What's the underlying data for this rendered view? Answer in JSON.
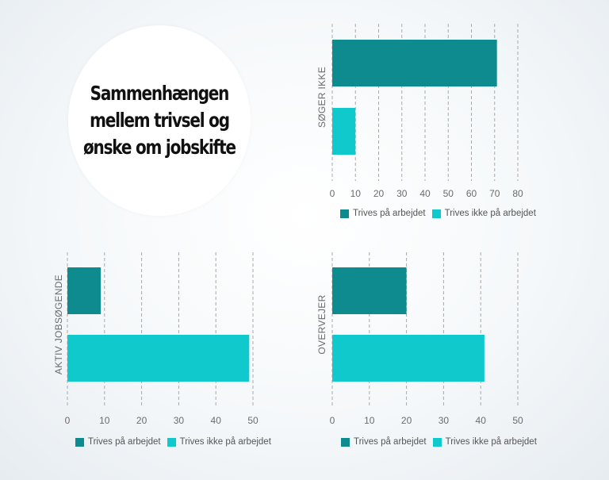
{
  "title_lines": [
    "Sammenhængen",
    "mellem trivsel og",
    "ønske om jobskifte"
  ],
  "colors": {
    "dark": "#0e8b8f",
    "light": "#10c9cd",
    "grid": "#a8a8a8"
  },
  "chart_data": [
    {
      "type": "bar",
      "orientation": "horizontal",
      "category_label": "SØGER IKKE",
      "xlim": [
        0,
        80
      ],
      "ticks": [
        0,
        10,
        20,
        30,
        40,
        50,
        60,
        70,
        80
      ],
      "series": [
        {
          "name": "Trives på arbejdet",
          "value": 71
        },
        {
          "name": "Trives ikke på arbejdet",
          "value": 10
        }
      ],
      "legend": [
        "Trives på arbejdet",
        "Trives ikke på arbejdet"
      ],
      "grid": true,
      "legend_position": "bottom"
    },
    {
      "type": "bar",
      "orientation": "horizontal",
      "category_label": "AKTIV JOBSØGENDE",
      "xlim": [
        0,
        50
      ],
      "ticks": [
        0,
        10,
        20,
        30,
        40,
        50
      ],
      "series": [
        {
          "name": "Trives på arbejdet",
          "value": 9
        },
        {
          "name": "Trives ikke på arbejdet",
          "value": 49
        }
      ],
      "legend": [
        "Trives på arbejdet",
        "Trives ikke på arbejdet"
      ],
      "grid": true,
      "legend_position": "bottom"
    },
    {
      "type": "bar",
      "orientation": "horizontal",
      "category_label": "OVERVEJER",
      "xlim": [
        0,
        50
      ],
      "ticks": [
        0,
        10,
        20,
        30,
        40,
        50
      ],
      "series": [
        {
          "name": "Trives på arbejdet",
          "value": 20
        },
        {
          "name": "Trives ikke på arbejdet",
          "value": 41
        }
      ],
      "legend": [
        "Trives på arbejdet",
        "Trives ikke på arbejdet"
      ],
      "grid": true,
      "legend_position": "bottom"
    }
  ]
}
